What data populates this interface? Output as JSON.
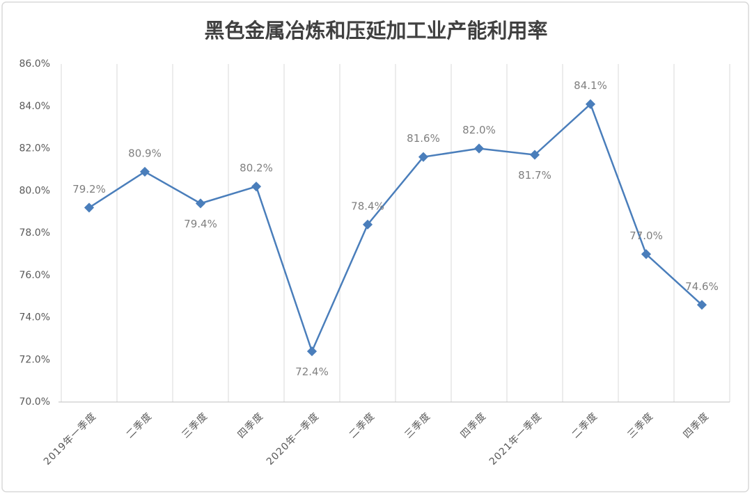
{
  "chart_data": {
    "type": "line",
    "title": "黑色金属冶炼和压延加工业产能利用率",
    "categories": [
      "2019年一季度",
      "二季度",
      "三季度",
      "四季度",
      "2020年一季度",
      "二季度",
      "三季度",
      "四季度",
      "2021年一季度",
      "二季度",
      "三季度",
      "四季度"
    ],
    "values": [
      79.2,
      80.9,
      79.4,
      80.2,
      72.4,
      78.4,
      81.6,
      82.0,
      81.7,
      84.1,
      77.0,
      74.6
    ],
    "value_labels": [
      "79.2%",
      "80.9%",
      "79.4%",
      "80.2%",
      "72.4%",
      "78.4%",
      "81.6%",
      "82.0%",
      "81.7%",
      "84.1%",
      "77.0%",
      "74.6%"
    ],
    "color": "#4a7ebb",
    "ylim": [
      70,
      86
    ],
    "yticks": [
      {
        "value": 70,
        "label": "70.0%"
      },
      {
        "value": 72,
        "label": "72.0%"
      },
      {
        "value": 74,
        "label": "74.0%"
      },
      {
        "value": 76,
        "label": "76.0%"
      },
      {
        "value": 78,
        "label": "78.0%"
      },
      {
        "value": 80,
        "label": "80.0%"
      },
      {
        "value": 82,
        "label": "82.0%"
      },
      {
        "value": 84,
        "label": "84.0%"
      },
      {
        "value": 86,
        "label": "86.0%"
      }
    ],
    "grid": true
  }
}
